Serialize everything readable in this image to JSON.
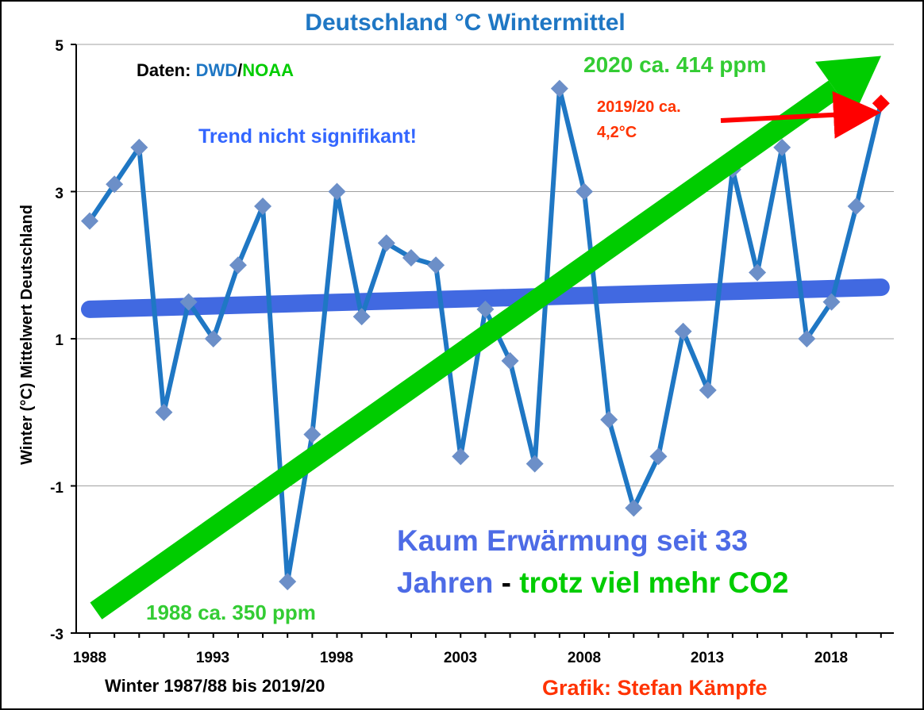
{
  "chart_data": {
    "type": "line",
    "title": "Deutschland °C Wintermittel",
    "xlabel": "Winter 1987/88 bis 2019/20",
    "ylabel": "Winter (°C) Mittelwert Deutschland",
    "xlim": [
      1988,
      2020
    ],
    "ylim": [
      -3,
      5
    ],
    "x_ticks": [
      "1988",
      "1993",
      "1998",
      "2003",
      "2008",
      "2013",
      "2018"
    ],
    "y_ticks": [
      "5",
      "3",
      "1",
      "-1",
      "-3"
    ],
    "grid": true,
    "x": [
      1988,
      1989,
      1990,
      1991,
      1992,
      1993,
      1994,
      1995,
      1996,
      1997,
      1998,
      1999,
      2000,
      2001,
      2002,
      2003,
      2004,
      2005,
      2006,
      2007,
      2008,
      2009,
      2010,
      2011,
      2012,
      2013,
      2014,
      2015,
      2016,
      2017,
      2018,
      2019,
      2020
    ],
    "series": [
      {
        "values": [
          2.6,
          3.1,
          3.6,
          0.0,
          1.5,
          1.0,
          2.0,
          2.8,
          -2.3,
          -0.3,
          3.0,
          1.3,
          2.3,
          2.1,
          2.0,
          -0.6,
          1.4,
          0.7,
          -0.7,
          4.4,
          3.0,
          -0.1,
          -1.3,
          -0.6,
          1.1,
          0.3,
          3.3,
          1.9,
          3.6,
          1.0,
          1.5,
          2.8,
          4.2
        ],
        "color": "#1f77c4",
        "marker_color": "#6c8fc8",
        "highlight_last": {
          "x": 2020,
          "value": 4.2,
          "color": "#ff0000"
        }
      }
    ],
    "trend": {
      "start": 1.4,
      "end": 1.7,
      "color": "#4169e1"
    },
    "co2_arrow": {
      "start": -2.7,
      "end": 4.8,
      "color": "#00cc00"
    },
    "annotations": {
      "data_prefix": "Daten: ",
      "data_dwd": "DWD",
      "data_sep": "/",
      "data_noaa": "NOAA",
      "trend_note": "Trend nicht signifikant!",
      "co2_2020": "2020 ca. 414 ppm",
      "co2_1988": "1988 ca. 350 ppm",
      "latest_line1": "2019/20 ca.",
      "latest_line2": "4,2°C",
      "summary_line1": "Kaum Erwärmung seit 33",
      "summary_line2_a": "Jahren",
      "summary_line2_b": " - ",
      "summary_line2_c": "trotz viel mehr CO2",
      "credit": "Grafik: Stefan Kämpfe"
    },
    "colors": {
      "title": "#1f77c4",
      "dwd": "#1f77c4",
      "noaa": "#00cc00",
      "green_text": "#33cc33",
      "blue_text": "#3366ff",
      "summary_blue": "#4d6be6",
      "red_text": "#ff3300",
      "credit": "#ff3300"
    }
  }
}
